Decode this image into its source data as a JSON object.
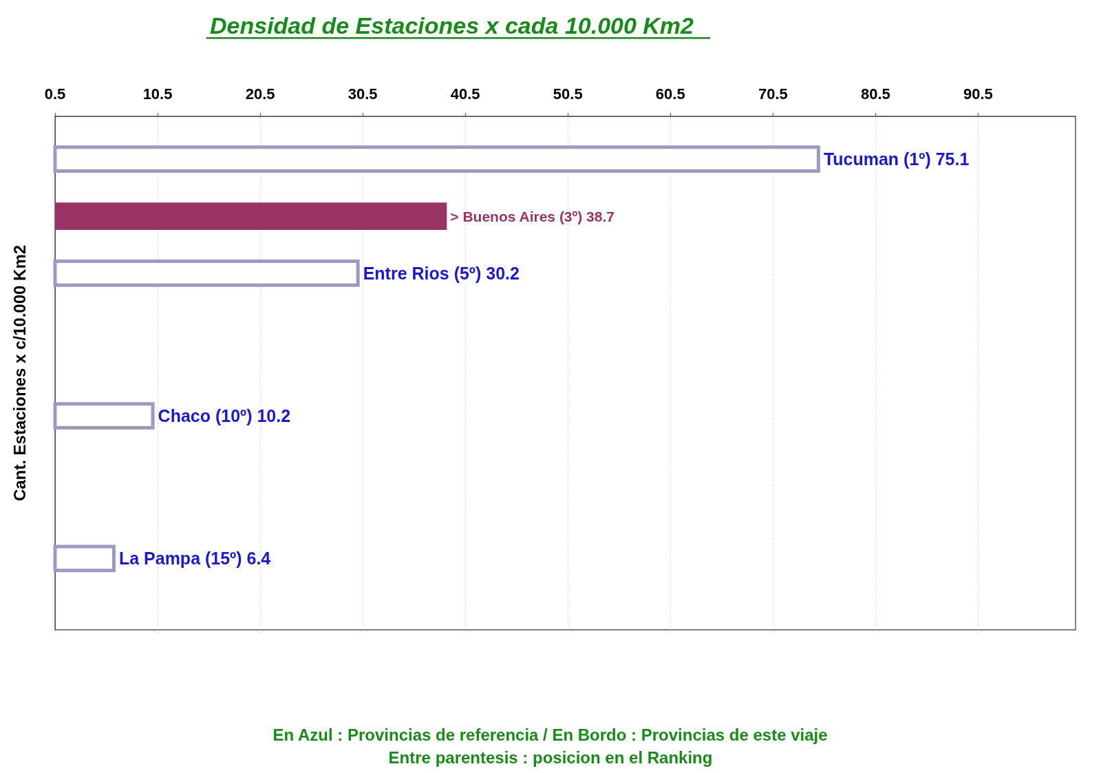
{
  "chart_data": {
    "type": "bar",
    "orientation": "horizontal",
    "title": "Densidad de Estaciones x cada 10.000 Km2",
    "ylabel": "Cant. Estaciones x c/10.000 Km2",
    "categories": [
      null,
      null,
      null,
      null,
      null,
      null,
      null,
      null,
      null,
      null,
      null,
      null,
      null,
      null,
      null,
      null,
      null,
      null
    ],
    "series": [
      {
        "color": "#9b9bc2",
        "values": [
          null,
          75.1,
          null,
          null,
          null,
          30.2,
          null,
          null,
          null,
          null,
          10.2,
          null,
          null,
          null,
          null,
          6.4,
          null,
          null
        ],
        "value_labels": [
          null,
          "Tucuman (1º) 75.1",
          null,
          null,
          null,
          "Entre Rios (5º) 30.2",
          null,
          null,
          null,
          null,
          "Chaco (10º) 10.2",
          null,
          null,
          null,
          null,
          "La Pampa (15º) 6.4",
          null,
          null
        ]
      },
      {
        "color": "#993366",
        "values": [
          null,
          null,
          null,
          38.7,
          null,
          null,
          null,
          null,
          null,
          null,
          null,
          null,
          null,
          null,
          null,
          null,
          null,
          null
        ],
        "value_labels": [
          null,
          null,
          null,
          "> Buenos Aires (3º) 38.7",
          null,
          null,
          null,
          null,
          null,
          null,
          null,
          null,
          null,
          null,
          null,
          null,
          null,
          null
        ]
      }
    ],
    "xlim": [
      0.5,
      100
    ],
    "xticks": [
      0.5,
      10.5,
      20.5,
      30.5,
      40.5,
      50.5,
      60.5,
      70.5,
      80.5,
      90.5
    ],
    "grid": "x",
    "annotations": [
      "En Azul : Provincias de referencia / En Bordo : Provincias de este viaje",
      "Entre parentesis : posicion en el Ranking"
    ]
  }
}
